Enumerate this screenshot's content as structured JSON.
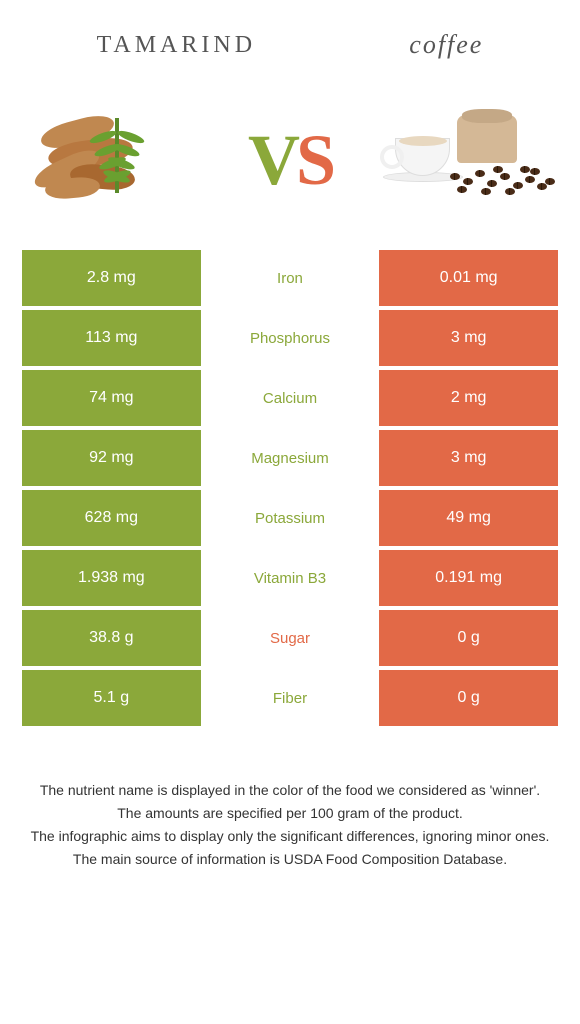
{
  "header": {
    "left_title": "Tamarind",
    "right_title": "coffee"
  },
  "vs": {
    "v": "V",
    "s": "S"
  },
  "colors": {
    "left_bg": "#8ba83a",
    "right_bg": "#e26947",
    "left_winner_text": "#8ba83a",
    "right_winner_text": "#e26947"
  },
  "table": {
    "rows": [
      {
        "left": "2.8 mg",
        "center": "Iron",
        "right": "0.01 mg",
        "winner": "left"
      },
      {
        "left": "113 mg",
        "center": "Phosphorus",
        "right": "3 mg",
        "winner": "left"
      },
      {
        "left": "74 mg",
        "center": "Calcium",
        "right": "2 mg",
        "winner": "left"
      },
      {
        "left": "92 mg",
        "center": "Magnesium",
        "right": "3 mg",
        "winner": "left"
      },
      {
        "left": "628 mg",
        "center": "Potassium",
        "right": "49 mg",
        "winner": "left"
      },
      {
        "left": "1.938 mg",
        "center": "Vitamin B3",
        "right": "0.191 mg",
        "winner": "left"
      },
      {
        "left": "38.8 g",
        "center": "Sugar",
        "right": "0 g",
        "winner": "right"
      },
      {
        "left": "5.1 g",
        "center": "Fiber",
        "right": "0 g",
        "winner": "left"
      }
    ]
  },
  "footer": {
    "line1": "The nutrient name is displayed in the color of the food we considered as 'winner'.",
    "line2": "The amounts are specified per 100 gram of the product.",
    "line3": "The infographic aims to display only the significant differences, ignoring minor ones.",
    "line4": "The main source of information is USDA Food Composition Database."
  }
}
